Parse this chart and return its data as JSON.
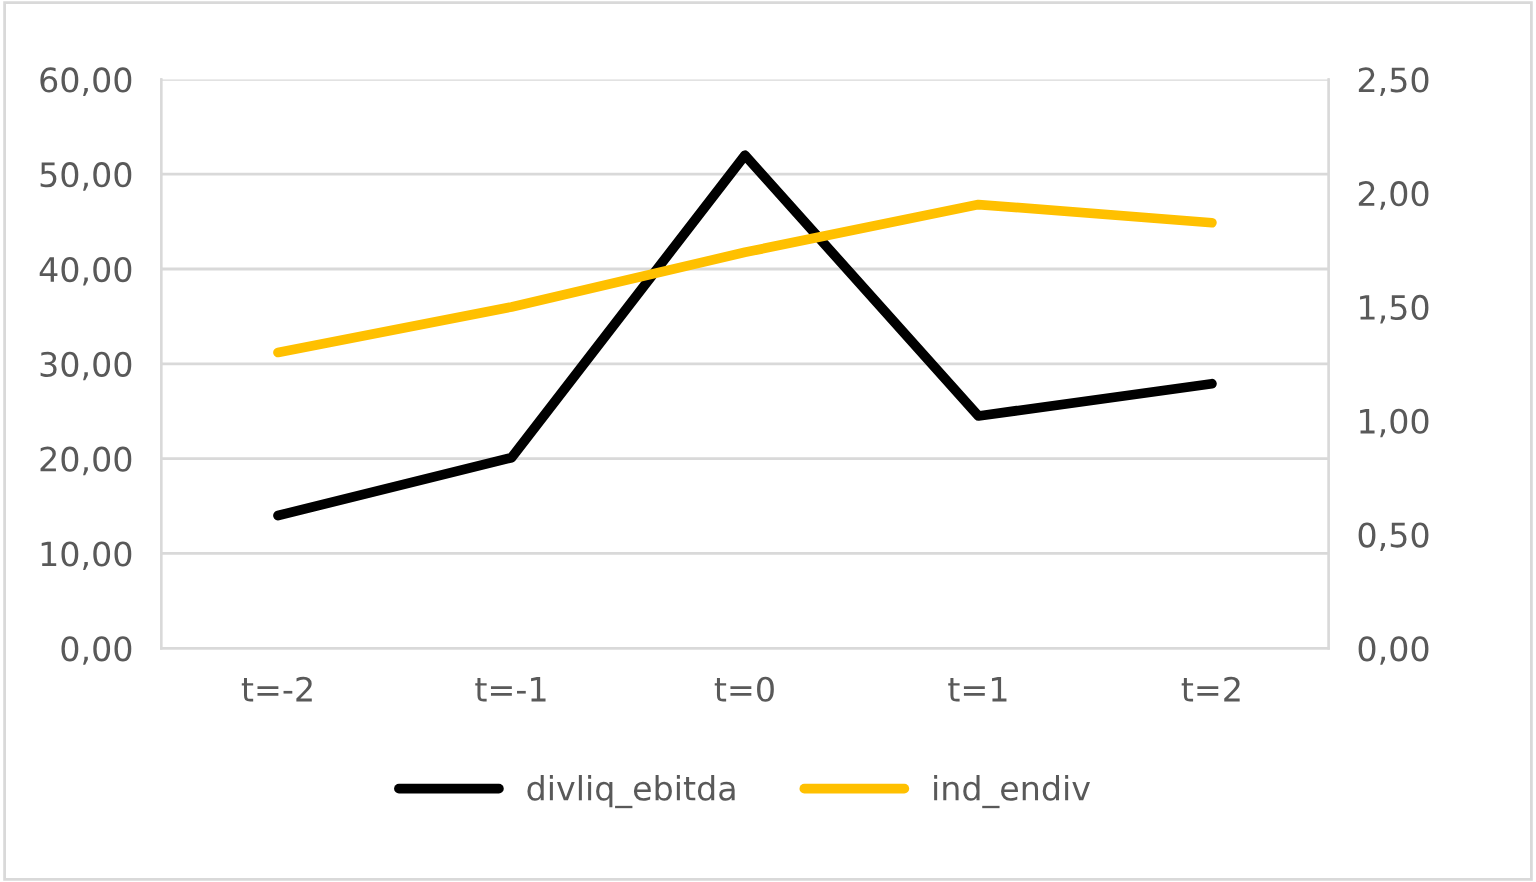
{
  "chart_data": {
    "type": "line",
    "categories": [
      "t=-2",
      "t=-1",
      "t=0",
      "t=1",
      "t=2"
    ],
    "series": [
      {
        "name": "divliq_ebitda",
        "color": "#000000",
        "values": [
          14.0,
          20.1,
          52.0,
          24.5,
          27.9
        ]
      },
      {
        "name": "ind_endiv",
        "color": "#ffc000",
        "values": [
          1.3,
          1.5,
          1.74,
          1.95,
          1.87
        ],
        "axis": "y2"
      }
    ],
    "ylim": [
      0,
      60
    ],
    "yticks": [
      {
        "value": 0,
        "label": "0,00"
      },
      {
        "value": 10,
        "label": "10,00"
      },
      {
        "value": 20,
        "label": "20,00"
      },
      {
        "value": 30,
        "label": "30,00"
      },
      {
        "value": 40,
        "label": "40,00"
      },
      {
        "value": 50,
        "label": "50,00"
      },
      {
        "value": 60,
        "label": "60,00"
      }
    ],
    "y2lim": [
      0,
      2.5
    ],
    "y2ticks": [
      {
        "value": 0,
        "label": "0,00"
      },
      {
        "value": 0.5,
        "label": "0,50"
      },
      {
        "value": 1,
        "label": "1,00"
      },
      {
        "value": 1.5,
        "label": "1,50"
      },
      {
        "value": 2,
        "label": "2,00"
      },
      {
        "value": 2.5,
        "label": "2,50"
      }
    ],
    "grid": "y",
    "legend": "bottom",
    "marker": "none",
    "line_style": "solid"
  }
}
